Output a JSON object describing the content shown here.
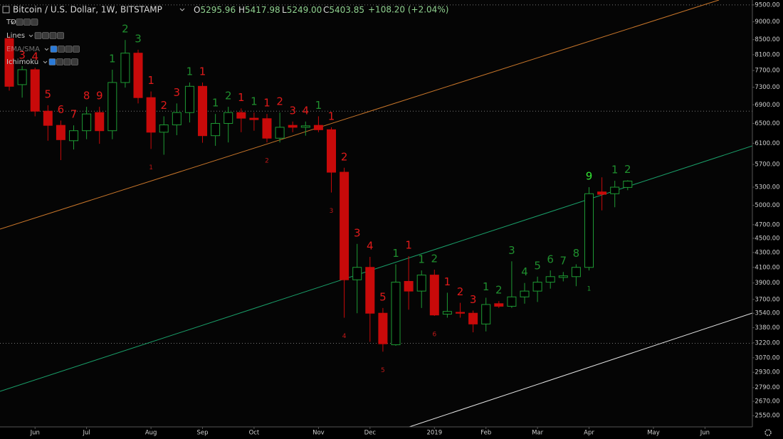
{
  "header": {
    "title": "Bitcoin / U.S. Dollar, 1W, BITSTAMP",
    "open_label": "O",
    "open": "5295.96",
    "high_label": "H",
    "high": "5417.98",
    "low_label": "L",
    "low": "5249.00",
    "close_label": "C",
    "close": "5403.85",
    "change": "+108.20 (+2.04%)"
  },
  "indicators": [
    "TD",
    "Lines",
    "EMA/SMA",
    "Ichimoku"
  ],
  "chart_data": {
    "type": "candlestick",
    "log_scale": true,
    "x": [
      0,
      1,
      2,
      3,
      4,
      5,
      6,
      7,
      8,
      9,
      10,
      11,
      12,
      13,
      14,
      15,
      16,
      17,
      18,
      19,
      20,
      21,
      22,
      23,
      24,
      25,
      26,
      27,
      28,
      29,
      30,
      31,
      32,
      33,
      34,
      35,
      36,
      37,
      38,
      39,
      40,
      41,
      42,
      43,
      44,
      45,
      46,
      47,
      48
    ],
    "open": [
      8530,
      7360,
      7720,
      6760,
      6460,
      6150,
      6350,
      6730,
      6350,
      7410,
      8140,
      7060,
      6320,
      6470,
      6730,
      7320,
      6250,
      6500,
      6730,
      6610,
      6600,
      6200,
      6460,
      6420,
      6460,
      6370,
      5560,
      3940,
      4100,
      3540,
      3200,
      3920,
      3800,
      4000,
      3530,
      3550,
      3540,
      3420,
      3650,
      3620,
      3730,
      3800,
      3910,
      3970,
      3980,
      4100,
      5220,
      5190,
      5296
    ],
    "high": [
      8611,
      7810,
      7770,
      6890,
      6560,
      6460,
      6855,
      6855,
      7720,
      8490,
      8230,
      7200,
      6650,
      6930,
      7410,
      7410,
      6700,
      6855,
      6820,
      6730,
      6700,
      6730,
      6540,
      6540,
      6650,
      6420,
      5640,
      4420,
      4240,
      3600,
      4140,
      4250,
      4060,
      4070,
      3780,
      3660,
      3570,
      3720,
      3680,
      4180,
      3900,
      3980,
      4060,
      4040,
      4140,
      5300,
      5470,
      5410,
      5418
    ],
    "low": [
      7220,
      7060,
      6650,
      6150,
      5780,
      5980,
      6180,
      6090,
      6180,
      7290,
      6930,
      5990,
      5880,
      6260,
      6520,
      6110,
      6050,
      6116,
      6320,
      6350,
      6116,
      6116,
      6320,
      6250,
      6320,
      5210,
      3490,
      3540,
      3230,
      3130,
      3190,
      3580,
      3600,
      3510,
      3490,
      3490,
      3330,
      3340,
      3600,
      3600,
      3650,
      3670,
      3830,
      3920,
      3860,
      4060,
      4920,
      4970,
      5249
    ],
    "close": [
      7320,
      7720,
      6760,
      6460,
      6170,
      6350,
      6700,
      6350,
      7410,
      8140,
      7060,
      6320,
      6470,
      6730,
      7320,
      6250,
      6500,
      6730,
      6610,
      6580,
      6200,
      6420,
      6420,
      6450,
      6370,
      5560,
      3940,
      4100,
      3540,
      3210,
      3910,
      3800,
      4000,
      3520,
      3560,
      3540,
      3420,
      3640,
      3620,
      3730,
      3800,
      3910,
      3980,
      3990,
      4100,
      5190,
      5180,
      5300,
      5404
    ],
    "up_color": "#1e9a34",
    "down_color": "#c80a0a",
    "xlim": [
      -0.72,
      57.68
    ],
    "xticks": [
      {
        "value": 2,
        "label": "Jun"
      },
      {
        "value": 6,
        "label": "Jul"
      },
      {
        "value": 11,
        "label": "Aug"
      },
      {
        "value": 15,
        "label": "Sep"
      },
      {
        "value": 19,
        "label": "Oct"
      },
      {
        "value": 24,
        "label": "Nov"
      },
      {
        "value": 28,
        "label": "Dec"
      },
      {
        "value": 33,
        "label": "2019"
      },
      {
        "value": 37,
        "label": "Feb"
      },
      {
        "value": 41,
        "label": "Mar"
      },
      {
        "value": 45,
        "label": "Apr"
      },
      {
        "value": 50,
        "label": "May"
      },
      {
        "value": 54,
        "label": "Jun"
      }
    ],
    "ylim": [
      2460,
      9650
    ],
    "yticks": [
      {
        "value": 9500,
        "label": "9500.00"
      },
      {
        "value": 9000,
        "label": "9000.00"
      },
      {
        "value": 8500,
        "label": "8500.00"
      },
      {
        "value": 8100,
        "label": "8100.00"
      },
      {
        "value": 7700,
        "label": "7700.00"
      },
      {
        "value": 7300,
        "label": "7300.00"
      },
      {
        "value": 6900,
        "label": "6900.00"
      },
      {
        "value": 6500,
        "label": "6500.00"
      },
      {
        "value": 6100,
        "label": "6100.00"
      },
      {
        "value": 5700,
        "label": "5700.00"
      },
      {
        "value": 5300,
        "label": "5300.00"
      },
      {
        "value": 5000,
        "label": "5000.00"
      },
      {
        "value": 4700,
        "label": "4700.00"
      },
      {
        "value": 4500,
        "label": "4500.00"
      },
      {
        "value": 4300,
        "label": "4300.00"
      },
      {
        "value": 4100,
        "label": "4100.00"
      },
      {
        "value": 3900,
        "label": "3900.00"
      },
      {
        "value": 3700,
        "label": "3700.00"
      },
      {
        "value": 3540,
        "label": "3540.00"
      },
      {
        "value": 3380,
        "label": "3380.00"
      },
      {
        "value": 3220,
        "label": "3220.00"
      },
      {
        "value": 3070,
        "label": "3070.00"
      },
      {
        "value": 2930,
        "label": "2930.00"
      },
      {
        "value": 2790,
        "label": "2790.00"
      },
      {
        "value": 2670,
        "label": "2670.00"
      },
      {
        "value": 2550,
        "label": "2550.00"
      }
    ],
    "levels": [
      9500,
      6760,
      3215
    ],
    "setup_labels": [
      null,
      "3",
      "4",
      "5",
      "6",
      "7",
      "8",
      "9",
      "1",
      "2",
      "3",
      "1",
      "2",
      "3",
      "1",
      "1",
      "1",
      "2",
      "1",
      "1",
      "1",
      "2",
      "3",
      "4",
      "1",
      "1",
      "2",
      "3",
      "4",
      "5",
      "1",
      "1",
      "1",
      "2",
      "1",
      "2",
      "3",
      "1",
      "2",
      "3",
      "4",
      "5",
      "6",
      "7",
      "8",
      "9",
      null,
      "1",
      "2"
    ],
    "setup_colors": [
      null,
      "#e01a1a",
      "#e01a1a",
      "#e01a1a",
      "#e01a1a",
      "#e01a1a",
      "#e01a1a",
      "#e01a1a",
      "#1f8f2e",
      "#1f8f2e",
      "#1f8f2e",
      "#e01a1a",
      "#e01a1a",
      "#e01a1a",
      "#1f8f2e",
      "#e01a1a",
      "#1f8f2e",
      "#1f8f2e",
      "#e01a1a",
      "#1f8f2e",
      "#e01a1a",
      "#e01a1a",
      "#e01a1a",
      "#e01a1a",
      "#1f8f2e",
      "#e01a1a",
      "#e01a1a",
      "#e01a1a",
      "#e01a1a",
      "#e01a1a",
      "#1f8f2e",
      "#e01a1a",
      "#1f8f2e",
      "#1f8f2e",
      "#e01a1a",
      "#e01a1a",
      "#e01a1a",
      "#1f8f2e",
      "#1f8f2e",
      "#1f8f2e",
      "#1f8f2e",
      "#1f8f2e",
      "#1f8f2e",
      "#1f8f2e",
      "#1f8f2e",
      "#33e633",
      null,
      "#1f8f2e",
      "#1f8f2e"
    ],
    "countdown_labels": [
      null,
      null,
      null,
      null,
      null,
      null,
      null,
      null,
      null,
      null,
      null,
      "1",
      null,
      null,
      null,
      null,
      null,
      null,
      null,
      null,
      "2",
      null,
      null,
      null,
      null,
      "3",
      "4",
      null,
      null,
      "5",
      null,
      null,
      null,
      "6",
      null,
      null,
      null,
      null,
      null,
      null,
      null,
      null,
      null,
      null,
      null,
      "1",
      null,
      null,
      null
    ],
    "countdown_colors": [
      null,
      null,
      null,
      null,
      null,
      null,
      null,
      null,
      null,
      null,
      null,
      "#c01818",
      null,
      null,
      null,
      null,
      null,
      null,
      null,
      null,
      "#c01818",
      null,
      null,
      null,
      null,
      "#c01818",
      "#c01818",
      null,
      null,
      "#c01818",
      null,
      null,
      null,
      "#c01818",
      null,
      null,
      null,
      null,
      null,
      null,
      null,
      null,
      null,
      null,
      null,
      "#1f9a2e",
      null,
      null,
      null
    ]
  }
}
